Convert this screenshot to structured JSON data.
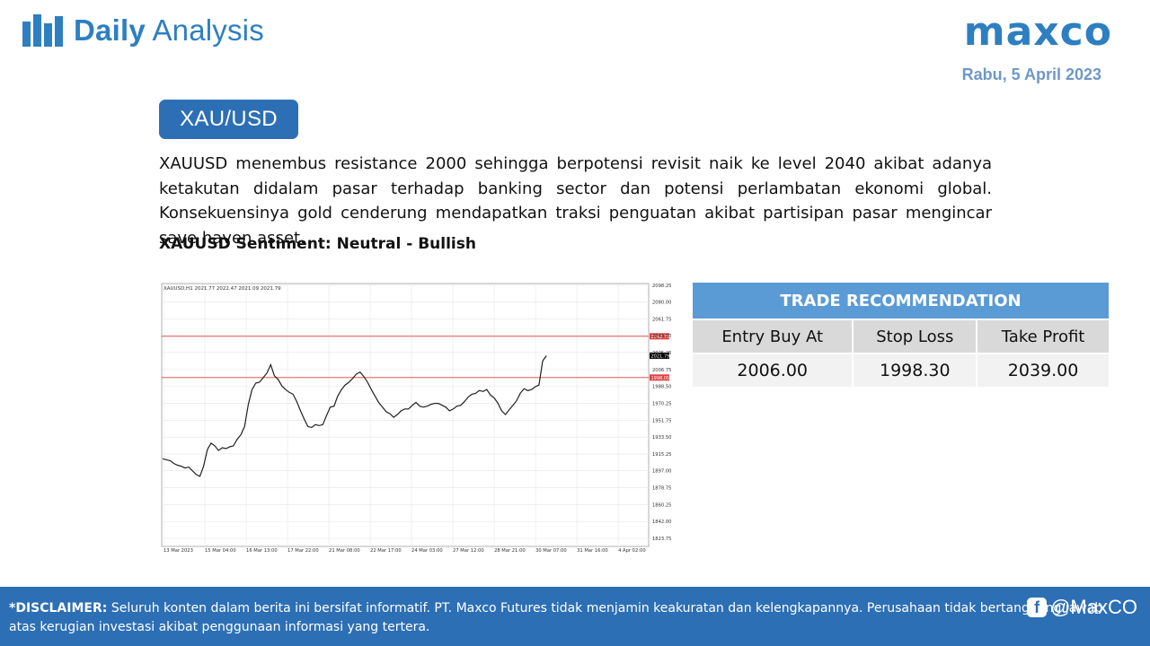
{
  "header": {
    "brand_bold": "Daily",
    "brand_light": "Analysis",
    "logo": "maxco",
    "date": "Rabu, 5 April 2023"
  },
  "pair": "XAU/USD",
  "description": "XAUUSD menembus resistance 2000 sehingga berpotensi revisit naik ke level 2040 akibat adanya ketakutan didalam pasar terhadap banking sector dan potensi perlambatan ekonomi global. Konsekuensinya gold cenderung mendapatkan traksi penguatan akibat partisipan pasar mengincar save haven asset.",
  "sentiment": "XAUUSD Sentiment: Neutral - Bullish",
  "trade": {
    "title": "TRADE RECOMMENDATION",
    "headers": [
      "Entry Buy At",
      "Stop Loss",
      "Take Profit"
    ],
    "values": [
      "2006.00",
      "1998.30",
      "2039.00"
    ]
  },
  "footer": {
    "disclaimer_label": "*DISCLAIMER:",
    "disclaimer_text": "Seluruh konten dalam berita ini bersifat informatif. PT. Maxco Futures tidak menjamin keakuratan dan kelengkapannya. Perusahaan tidak bertanggung jawab atas kerugian investasi akibat penggunaan informasi yang tertera.",
    "social_handle": "@MaxCO"
  },
  "chart_data": {
    "type": "line",
    "title": "XAUUSD,H1  2021.77 2022.47 2021.09 2021.79",
    "y_ticks": [
      "2098.25",
      "2080.00",
      "2061.75",
      "2043.50",
      "2025.25",
      "2006.75",
      "1988.50",
      "1970.25",
      "1951.75",
      "1933.50",
      "1915.25",
      "1897.00",
      "1878.75",
      "1860.25",
      "1842.00",
      "1823.75"
    ],
    "x_ticks": [
      "13 Mar 2023",
      "15 Mar 04:00",
      "16 Mar 13:00",
      "17 Mar 22:00",
      "21 Mar 08:00",
      "22 Mar 17:00",
      "24 Mar 03:00",
      "27 Mar 12:00",
      "28 Mar 21:00",
      "30 Mar 07:00",
      "31 Mar 16:00",
      "4 Apr 02:00"
    ],
    "ylim": [
      1815,
      2100
    ],
    "hlines": [
      {
        "value": 2042.79,
        "label": "2042.79",
        "color": "#e04040"
      },
      {
        "value": 1998.05,
        "label": "1998.05",
        "color": "#e04040"
      }
    ],
    "current": {
      "value": 2021.79,
      "label": "2021.79"
    },
    "series": [
      {
        "values": [
          1910,
          1909,
          1908,
          1905,
          1903,
          1902,
          1900,
          1901,
          1897,
          1893,
          1891,
          1902,
          1920,
          1927,
          1924,
          1919,
          1922,
          1921,
          1923,
          1924,
          1931,
          1936,
          1945,
          1969,
          1985,
          1992,
          1993,
          1998,
          2003,
          2012,
          2000,
          1996,
          1989,
          1985,
          1982,
          1980,
          1972,
          1962,
          1953,
          1945,
          1944,
          1947,
          1946,
          1947,
          1957,
          1966,
          1967,
          1978,
          1985,
          1990,
          1993,
          1997,
          2002,
          2004,
          1999,
          1993,
          1985,
          1978,
          1971,
          1966,
          1961,
          1959,
          1955,
          1958,
          1962,
          1964,
          1964,
          1968,
          1971,
          1967,
          1966,
          1967,
          1969,
          1970,
          1970,
          1968,
          1966,
          1962,
          1964,
          1967,
          1968,
          1972,
          1977,
          1980,
          1981,
          1984,
          1983,
          1985,
          1979,
          1976,
          1970,
          1962,
          1958,
          1963,
          1968,
          1973,
          1981,
          1986,
          1984,
          1985,
          1988,
          1990,
          2016,
          2021.79
        ],
        "color": "#202020"
      }
    ]
  }
}
